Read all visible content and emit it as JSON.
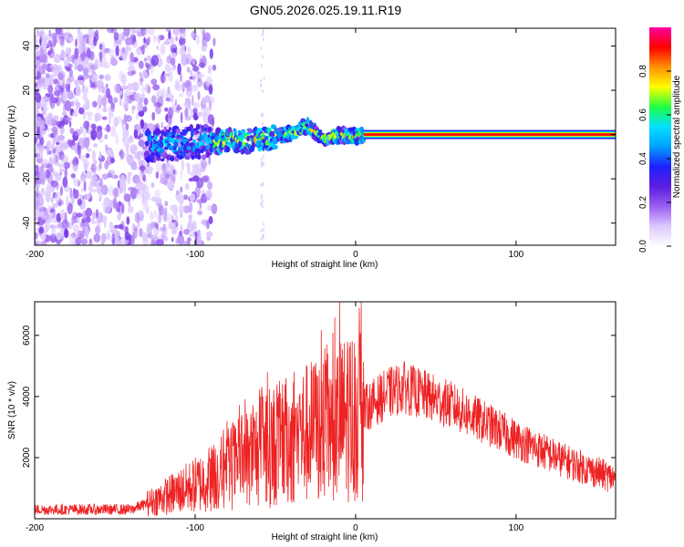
{
  "figure": {
    "title": "GN05.2026.025.19.11.R19"
  },
  "chart_data": [
    {
      "type": "heatmap",
      "name": "spectrogram",
      "xlabel": "Height of straight line (km)",
      "ylabel": "Frequency (Hz)",
      "xlim": [
        -200,
        162
      ],
      "ylim": [
        -50,
        48
      ],
      "xticks": [
        -200,
        -100,
        0,
        100
      ],
      "yticks": [
        -40,
        -20,
        0,
        20,
        40
      ],
      "colorbar": {
        "label": "Normalized spectral amplitude",
        "range": [
          0,
          1
        ],
        "ticks": [
          0.0,
          0.2,
          0.4,
          0.6,
          0.8
        ],
        "colormap": [
          "#ffffff",
          "#dcc8ff",
          "#9a5cf0",
          "#5a1ee0",
          "#2020ff",
          "#00a0ff",
          "#00e0ff",
          "#20ff40",
          "#ffff00",
          "#ff9000",
          "#ff0000",
          "#ff00a0"
        ]
      },
      "carrier": {
        "x_start": -130,
        "x_end": 162,
        "freq_profile": [
          {
            "x": -130,
            "f": -5
          },
          {
            "x": -110,
            "f": -4
          },
          {
            "x": -90,
            "f": -3
          },
          {
            "x": -70,
            "f": -3
          },
          {
            "x": -55,
            "f": -2
          },
          {
            "x": -40,
            "f": 1
          },
          {
            "x": -30,
            "f": 4
          },
          {
            "x": -20,
            "f": -2
          },
          {
            "x": -10,
            "f": 0
          },
          {
            "x": 0,
            "f": -1
          },
          {
            "x": 5,
            "f": 0
          },
          {
            "x": 162,
            "f": 0
          }
        ]
      }
    },
    {
      "type": "line",
      "name": "snr",
      "xlabel": "Height of straight line (km)",
      "ylabel": "SNR (10 * v/v)",
      "xlim": [
        -200,
        162
      ],
      "ylim": [
        0,
        7100
      ],
      "xticks": [
        -200,
        -100,
        0,
        100
      ],
      "yticks": [
        2000,
        4000,
        6000
      ],
      "color": "#ee2222",
      "envelope": [
        {
          "x": -200,
          "y": 300
        },
        {
          "x": -140,
          "y": 300
        },
        {
          "x": -120,
          "y": 700
        },
        {
          "x": -100,
          "y": 1100
        },
        {
          "x": -80,
          "y": 1600
        },
        {
          "x": -60,
          "y": 2200
        },
        {
          "x": -40,
          "y": 2600
        },
        {
          "x": -20,
          "y": 3000
        },
        {
          "x": 0,
          "y": 3400
        },
        {
          "x": 20,
          "y": 4100
        },
        {
          "x": 30,
          "y": 4300
        },
        {
          "x": 60,
          "y": 3700
        },
        {
          "x": 100,
          "y": 2600
        },
        {
          "x": 130,
          "y": 1900
        },
        {
          "x": 162,
          "y": 1300
        }
      ],
      "peaks": [
        {
          "x": -55,
          "y": 4800
        },
        {
          "x": -35,
          "y": 4000
        },
        {
          "x": -18,
          "y": 5700
        },
        {
          "x": -10,
          "y": 7100
        },
        {
          "x": -5,
          "y": 5800
        },
        {
          "x": 30,
          "y": 5000
        }
      ]
    }
  ]
}
